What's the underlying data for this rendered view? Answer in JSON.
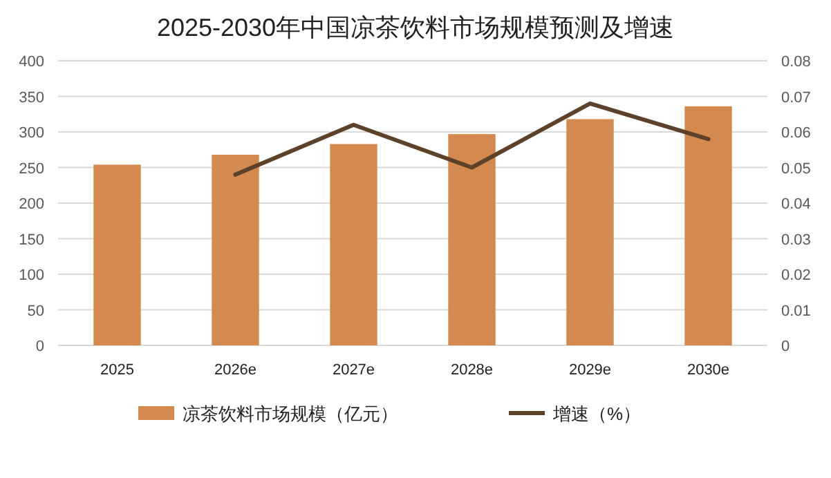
{
  "chart_data": {
    "type": "bar",
    "title": "2025-2030年中国凉茶饮料市场规模预测及增速",
    "categories": [
      "2025",
      "2026e",
      "2027e",
      "2028e",
      "2029e",
      "2030e"
    ],
    "series": [
      {
        "name": "凉茶饮料市场规模（亿元）",
        "color": "#d48a4e",
        "values": [
          254,
          268,
          283,
          297,
          318,
          336
        ]
      },
      {
        "name": "增速（%）",
        "type": "line",
        "axis": "y2",
        "color": "#5e4129",
        "values": [
          null,
          0.048,
          0.062,
          0.05,
          0.068,
          0.058
        ]
      }
    ],
    "ylim": [
      0,
      400
    ],
    "yticks": [
      0,
      50,
      100,
      150,
      200,
      250,
      300,
      350,
      400
    ],
    "y2lim": [
      0,
      0.08
    ],
    "y2ticks": [
      0,
      0.01,
      0.02,
      0.03,
      0.04,
      0.05,
      0.06,
      0.07,
      0.08
    ],
    "grid": "y",
    "legend": "bottom",
    "marker": "none"
  }
}
